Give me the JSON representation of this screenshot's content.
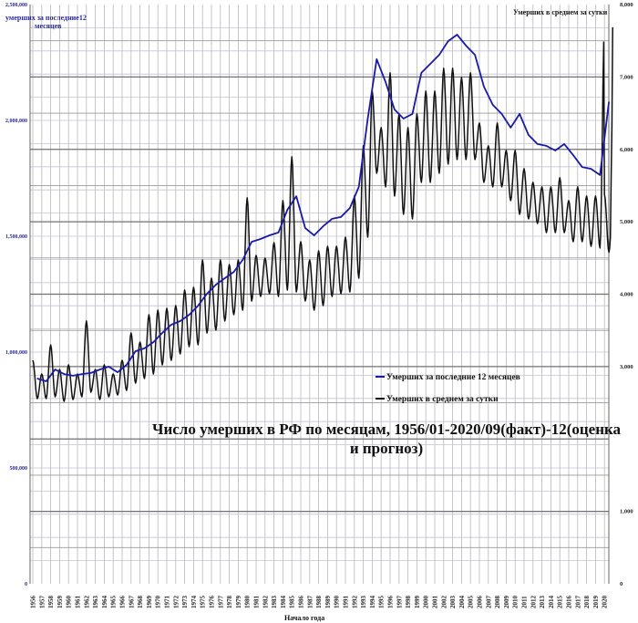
{
  "chart_data": {
    "type": "line",
    "title": "Число умерших в РФ по месяцам, 1956/01-2020/09(факт)-12(оценка и прогноз)",
    "title_line1": "Число умерших в РФ по месяцам, 1956/01-2020/09(факт)-12(оценка",
    "title_line2": "и прогноз)",
    "xlabel": "Начало года",
    "ylabel_left_line1": "умерших за последние12",
    "ylabel_left_line2": "месяцев",
    "ylabel_right": "Умерших в среднем за сутки",
    "ylim_left": [
      0,
      2500000
    ],
    "ylim_right": [
      0,
      8000
    ],
    "left_ticks": [
      "2,500,000",
      "2,000,000",
      "1,500,000",
      "1,000,000",
      "500,000",
      "0"
    ],
    "left_tick_values": [
      2500000,
      2000000,
      1500000,
      1000000,
      500000,
      0
    ],
    "right_ticks": [
      "8,000",
      "7,000",
      "6,000",
      "5,000",
      "4,000",
      "3,000",
      "1,000",
      "0"
    ],
    "right_tick_values": [
      8000,
      7000,
      6000,
      5000,
      4000,
      3000,
      1000,
      0
    ],
    "grid": true,
    "legend_position": "center-right",
    "legend": [
      "Умерших за последние 12 месяцев",
      "Умерших в среднем за сутки"
    ],
    "colors": {
      "blue": "#1a1aa6",
      "black": "#111111"
    },
    "years": [
      1956,
      1957,
      1958,
      1959,
      1960,
      1961,
      1962,
      1963,
      1964,
      1965,
      1966,
      1967,
      1968,
      1969,
      1970,
      1971,
      1972,
      1973,
      1974,
      1975,
      1976,
      1977,
      1978,
      1979,
      1980,
      1981,
      1982,
      1983,
      1984,
      1985,
      1986,
      1987,
      1988,
      1989,
      1990,
      1991,
      1992,
      1993,
      1994,
      1995,
      1996,
      1997,
      1998,
      1999,
      2000,
      2001,
      2002,
      2003,
      2004,
      2005,
      2006,
      2007,
      2008,
      2009,
      2010,
      2011,
      2012,
      2013,
      2014,
      2015,
      2016,
      2017,
      2018,
      2019,
      2020
    ],
    "series": [
      {
        "name": "Умерших за последние 12 месяцев",
        "axis": "left",
        "values": [
          886000,
          874000,
          925000,
          905000,
          898000,
          905000,
          910000,
          925000,
          937000,
          913000,
          945000,
          1004000,
          1016000,
          1043000,
          1083000,
          1118000,
          1134000,
          1161000,
          1200000,
          1252000,
          1291000,
          1319000,
          1346000,
          1398000,
          1476000,
          1488000,
          1504000,
          1516000,
          1614000,
          1673000,
          1535000,
          1504000,
          1543000,
          1575000,
          1583000,
          1622000,
          1713000,
          2008000,
          2264000,
          2165000,
          2047000,
          2008000,
          2028000,
          2205000,
          2244000,
          2283000,
          2342000,
          2370000,
          2323000,
          2283000,
          2146000,
          2067000,
          2028000,
          1969000,
          2028000,
          1937000,
          1898000,
          1890000,
          1870000,
          1898000,
          1850000,
          1799000,
          1791000,
          1764000,
          2080000
        ]
      },
      {
        "name": "Умерших в среднем за сутки",
        "axis": "right",
        "winter_peak": [
          3087,
          2898,
          3300,
          2961,
          3024,
          2898,
          3629,
          2961,
          3024,
          2898,
          3087,
          3465,
          3339,
          3717,
          3780,
          3805,
          3843,
          4057,
          4095,
          4473,
          4221,
          4473,
          4410,
          4473,
          5330,
          4536,
          4498,
          4712,
          5292,
          5897,
          4725,
          4473,
          4599,
          4662,
          4662,
          4788,
          5355,
          6048,
          6804,
          6300,
          7056,
          6489,
          6300,
          6489,
          6804,
          6804,
          7119,
          7119,
          6993,
          7056,
          6363,
          6048,
          6363,
          5985,
          5985,
          5733,
          5544,
          5481,
          5481,
          5607,
          5292,
          5481,
          5355,
          5355,
          7686
        ],
        "summer_low": [
          2558,
          2558,
          2583,
          2520,
          2545,
          2583,
          2646,
          2545,
          2583,
          2608,
          2671,
          2772,
          2835,
          2898,
          3024,
          3087,
          3175,
          3276,
          3301,
          3465,
          3503,
          3629,
          3717,
          3780,
          3906,
          3969,
          4007,
          3969,
          4057,
          4032,
          3906,
          3780,
          3843,
          3969,
          4007,
          4032,
          4221,
          4788,
          5670,
          5481,
          5355,
          5103,
          5040,
          5544,
          5544,
          5670,
          5796,
          5859,
          5859,
          5859,
          5544,
          5481,
          5481,
          5292,
          5103,
          5040,
          4977,
          4851,
          4851,
          4851,
          4725,
          4725,
          4662,
          4637,
          4977
        ]
      }
    ]
  }
}
